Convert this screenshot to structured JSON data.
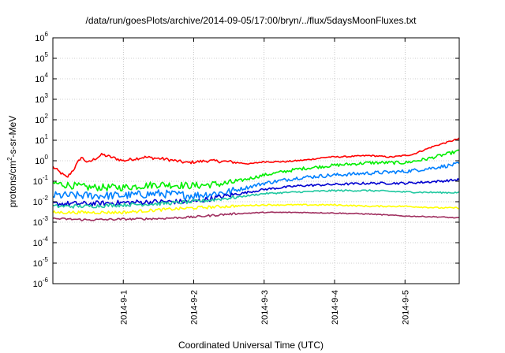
{
  "chart_data": {
    "type": "line",
    "title": "/data/run/goesPlots/archive/2014-09-05/17:00/bryn/../flux/5daysMoonFluxes.txt",
    "xlabel": "Coordinated Universal Time (UTC)",
    "ylabel": {
      "base": "protons/cm",
      "sup": "2",
      "rest": "-s-sr-MeV"
    },
    "ylog": true,
    "ylim": [
      1e-06,
      1000000.0
    ],
    "xlim": [
      0,
      5.77
    ],
    "grid": true,
    "legend": "none",
    "x_ticks": [
      {
        "x": 1,
        "label": "2014-9-1"
      },
      {
        "x": 2,
        "label": "2014-9-2"
      },
      {
        "x": 3,
        "label": "2014-9-3"
      },
      {
        "x": 4,
        "label": "2014-9-4"
      },
      {
        "x": 5,
        "label": "2014-9-5"
      }
    ],
    "y_ticks": [
      {
        "exp": 6
      },
      {
        "exp": 5
      },
      {
        "exp": 4
      },
      {
        "exp": 3
      },
      {
        "exp": 2
      },
      {
        "exp": 1
      },
      {
        "exp": 0
      },
      {
        "exp": -1
      },
      {
        "exp": -2
      },
      {
        "exp": -3
      },
      {
        "exp": -4
      },
      {
        "exp": -5
      },
      {
        "exp": -6
      }
    ],
    "series": [
      {
        "color": "#ff0000",
        "noise": 0.15,
        "x": [
          0,
          0.2,
          0.3,
          0.4,
          0.5,
          0.7,
          1.0,
          1.3,
          1.6,
          1.9,
          2.2,
          2.5,
          2.8,
          3.0,
          3.3,
          3.6,
          3.9,
          4.2,
          4.5,
          4.8,
          5.1,
          5.4,
          5.77
        ],
        "y": [
          0.5,
          0.15,
          0.4,
          1.5,
          0.8,
          2.0,
          1.0,
          1.5,
          1.2,
          0.8,
          1.0,
          0.9,
          0.7,
          0.9,
          0.9,
          1.1,
          1.5,
          1.6,
          1.8,
          1.5,
          2.0,
          5.0,
          12.0
        ]
      },
      {
        "color": "#00ee00",
        "noise": 0.35,
        "x": [
          0,
          0.5,
          1.0,
          1.5,
          2.0,
          2.5,
          3.0,
          3.5,
          4.0,
          4.5,
          5.0,
          5.3,
          5.77
        ],
        "y": [
          0.08,
          0.05,
          0.05,
          0.07,
          0.06,
          0.08,
          0.2,
          0.4,
          0.6,
          0.8,
          0.8,
          1.2,
          3.0
        ]
      },
      {
        "color": "#0080ff",
        "noise": 0.4,
        "x": [
          0,
          0.5,
          1.0,
          1.5,
          2.0,
          2.5,
          3.0,
          3.5,
          4.0,
          4.5,
          5.0,
          5.3,
          5.77
        ],
        "y": [
          0.02,
          0.02,
          0.02,
          0.025,
          0.02,
          0.03,
          0.08,
          0.15,
          0.2,
          0.25,
          0.3,
          0.4,
          0.7
        ]
      },
      {
        "color": "#0000d0",
        "noise": 0.25,
        "x": [
          0,
          0.5,
          1.0,
          1.5,
          2.0,
          2.5,
          3.0,
          3.5,
          4.0,
          4.5,
          5.0,
          5.5,
          5.77
        ],
        "y": [
          0.008,
          0.008,
          0.009,
          0.01,
          0.01,
          0.02,
          0.04,
          0.06,
          0.07,
          0.08,
          0.08,
          0.1,
          0.12
        ]
      },
      {
        "color": "#20c8a0",
        "noise": 0.18,
        "x": [
          0,
          0.5,
          1.0,
          1.5,
          2.0,
          2.5,
          3.0,
          3.5,
          4.0,
          4.5,
          5.0,
          5.5,
          5.77
        ],
        "y": [
          0.006,
          0.006,
          0.007,
          0.008,
          0.01,
          0.015,
          0.025,
          0.03,
          0.035,
          0.035,
          0.03,
          0.028,
          0.028
        ]
      },
      {
        "color": "#ffff00",
        "noise": 0.15,
        "x": [
          0,
          0.5,
          1.0,
          1.5,
          2.0,
          2.5,
          3.0,
          3.5,
          4.0,
          4.5,
          5.0,
          5.5,
          5.77
        ],
        "y": [
          0.003,
          0.003,
          0.003,
          0.004,
          0.005,
          0.006,
          0.007,
          0.007,
          0.007,
          0.006,
          0.006,
          0.005,
          0.005
        ]
      },
      {
        "color": "#a03060",
        "noise": 0.1,
        "x": [
          0,
          0.5,
          1.0,
          1.5,
          2.0,
          2.5,
          3.0,
          3.5,
          4.0,
          4.5,
          5.0,
          5.5,
          5.77
        ],
        "y": [
          0.0015,
          0.0013,
          0.0014,
          0.0015,
          0.0018,
          0.0025,
          0.003,
          0.003,
          0.0028,
          0.0025,
          0.002,
          0.0018,
          0.0016
        ]
      }
    ]
  }
}
